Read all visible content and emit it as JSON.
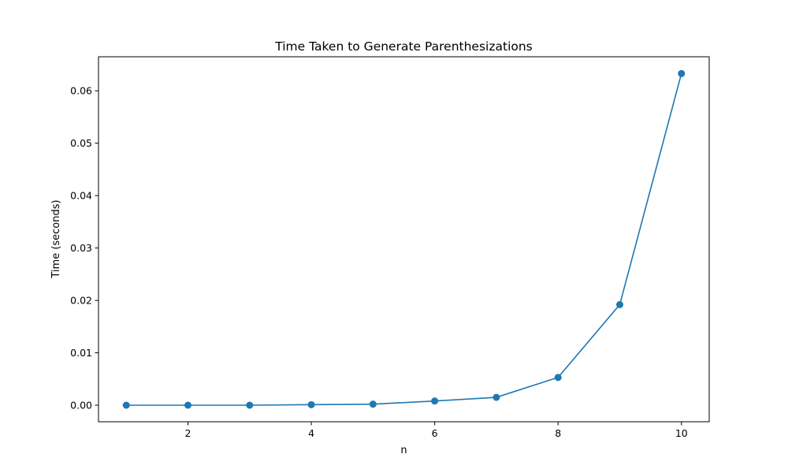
{
  "chart_data": {
    "type": "line",
    "title": "Time Taken to Generate Parenthesizations",
    "xlabel": "n",
    "ylabel": "Time (seconds)",
    "x": [
      1,
      2,
      3,
      4,
      5,
      6,
      7,
      8,
      9,
      10
    ],
    "series": [
      {
        "values": [
          0.0,
          0.0,
          0.0,
          0.0001,
          0.0002,
          0.0008,
          0.0015,
          0.0053,
          0.0192,
          0.0633
        ],
        "color": "#1f77b4",
        "marker": "circle"
      }
    ],
    "xlim": [
      0.55,
      10.45
    ],
    "ylim": [
      -0.00316,
      0.0665
    ],
    "xticks": [
      2,
      4,
      6,
      8,
      10
    ],
    "xtick_labels": [
      "2",
      "4",
      "6",
      "8",
      "10"
    ],
    "yticks": [
      0.0,
      0.01,
      0.02,
      0.03,
      0.04,
      0.05,
      0.06
    ],
    "ytick_labels": [
      "0.00",
      "0.01",
      "0.02",
      "0.03",
      "0.04",
      "0.05",
      "0.06"
    ],
    "grid": false,
    "legend": "none"
  }
}
